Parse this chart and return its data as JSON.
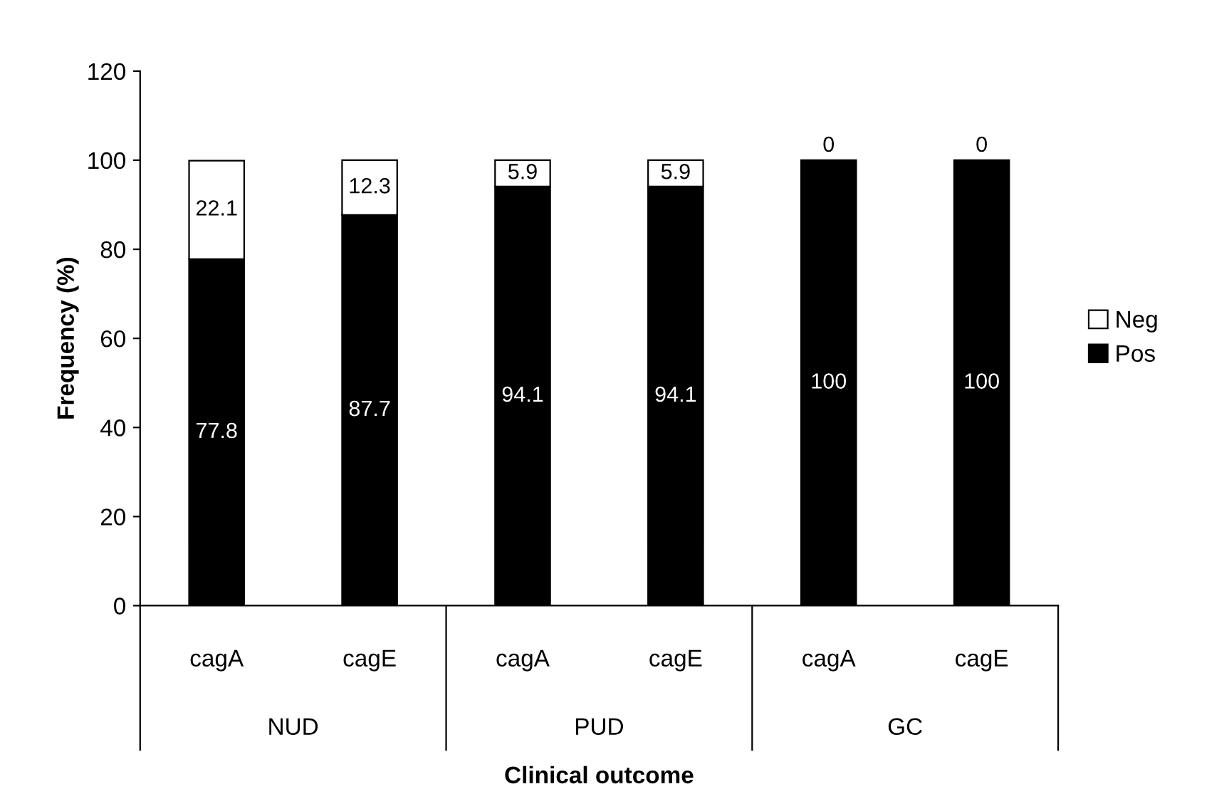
{
  "chart_data": {
    "type": "bar",
    "stacked": true,
    "xlabel": "Clinical outcome",
    "ylabel": "Frequency (%)",
    "categories": [
      "cagA",
      "cagE",
      "cagA",
      "cagE",
      "cagA",
      "cagE"
    ],
    "series": [
      {
        "name": "Pos",
        "color": "#000000",
        "values": [
          77.8,
          87.7,
          94.1,
          94.1,
          100,
          100
        ]
      },
      {
        "name": "Neg",
        "color": "#ffffff",
        "values": [
          22.1,
          12.3,
          5.9,
          5.9,
          0,
          0
        ]
      }
    ],
    "annotations": [
      "NUD",
      "PUD",
      "GC"
    ],
    "ylim": [
      0,
      120
    ],
    "yticks": [
      0,
      20,
      40,
      60,
      80,
      100,
      120
    ],
    "data_labels": true,
    "grid": false,
    "legend": "right"
  }
}
